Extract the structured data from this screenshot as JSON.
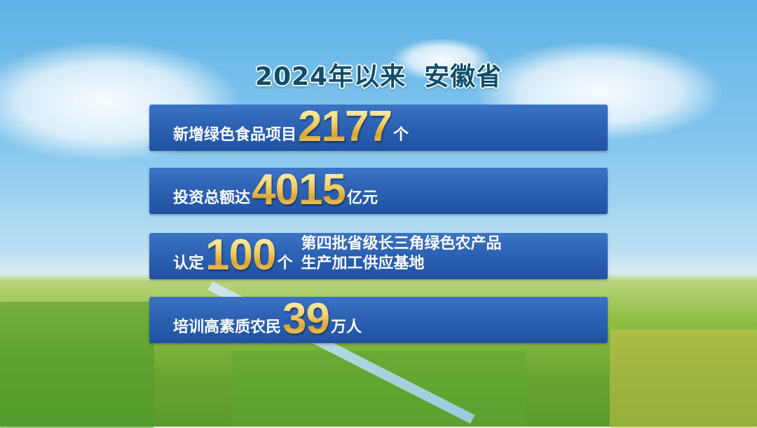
{
  "title": {
    "year": "2024年以来",
    "region": "安徽省"
  },
  "items": [
    {
      "prefix": "新增绿色食品项目",
      "value": "2177",
      "suffix": "个"
    },
    {
      "prefix": "投资总额达",
      "value": "4015",
      "suffix": "亿元"
    },
    {
      "prefix": "认定",
      "value": "100",
      "suffix": "个",
      "desc_line1": "第四批省级长三角绿色农产品",
      "desc_line2": "生产加工供应基地"
    },
    {
      "prefix": "培训高素质农民",
      "value": "39",
      "suffix": "万人"
    }
  ],
  "colors": {
    "panel": "#2d62b3",
    "number_gold": "#e8b94a",
    "title": "#0f4d6c"
  }
}
